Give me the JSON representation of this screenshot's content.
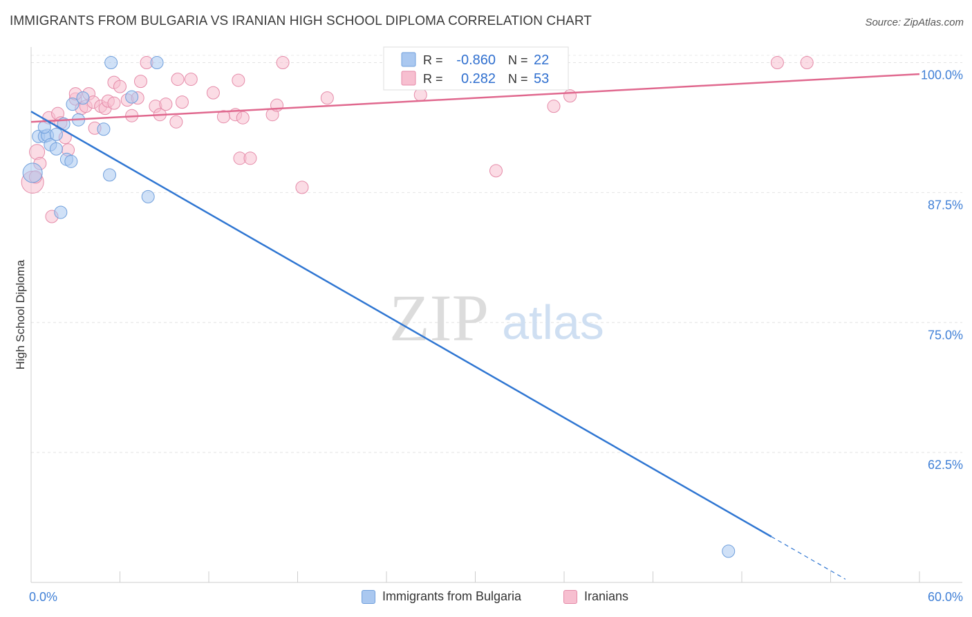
{
  "header": {
    "title": "IMMIGRANTS FROM BULGARIA VS IRANIAN HIGH SCHOOL DIPLOMA CORRELATION CHART",
    "source": "Source: ZipAtlas.com"
  },
  "watermark": {
    "zip": "ZIP",
    "atlas": "atlas"
  },
  "chart_data": {
    "type": "scatter",
    "title": "IMMIGRANTS FROM BULGARIA VS IRANIAN HIGH SCHOOL DIPLOMA CORRELATION CHART",
    "ylabel": "High School Diploma",
    "xlabel": "",
    "xlim": [
      0,
      60
    ],
    "ylim": [
      50,
      101.5
    ],
    "x_tick_labels": [
      "0.0%",
      "60.0%"
    ],
    "y_ticks": [
      62.5,
      75.0,
      87.5,
      100.0
    ],
    "y_tick_labels": [
      "62.5%",
      "75.0%",
      "87.5%",
      "100.0%"
    ],
    "grid": true,
    "legend_stats": [
      {
        "r_label": "R =",
        "r_value": "-0.860",
        "n_label": "N =",
        "n_value": "22",
        "color": "#aac8f0",
        "stroke": "#6f9fdc"
      },
      {
        "r_label": "R =",
        "r_value": "0.282",
        "n_label": "N =",
        "n_value": "53",
        "color": "#f7bfd0",
        "stroke": "#e58aa8"
      }
    ],
    "series": [
      {
        "name": "Immigrants from Bulgaria",
        "color": "#aac8f0",
        "stroke": "#6f9fdc",
        "line_color": "#2f76d2",
        "trend": {
          "x0": 0,
          "y0": 95.3,
          "x1": 50,
          "y1": 54.4,
          "dash_to_x": 55
        },
        "points": [
          [
            0.1,
            89.4,
            14
          ],
          [
            0.5,
            92.9,
            9
          ],
          [
            0.9,
            92.9,
            9
          ],
          [
            1.1,
            93.0,
            9
          ],
          [
            0.9,
            93.8,
            9
          ],
          [
            1.3,
            92.1,
            9
          ],
          [
            1.7,
            93.1,
            9
          ],
          [
            1.7,
            91.7,
            9
          ],
          [
            2.2,
            94.1,
            9
          ],
          [
            2.4,
            90.7,
            9
          ],
          [
            2.7,
            90.5,
            9
          ],
          [
            2.8,
            96.0,
            9
          ],
          [
            3.2,
            94.5,
            9
          ],
          [
            3.5,
            96.6,
            9
          ],
          [
            4.9,
            93.6,
            9
          ],
          [
            5.3,
            89.2,
            9
          ],
          [
            5.4,
            100.0,
            9
          ],
          [
            6.8,
            96.7,
            9
          ],
          [
            7.9,
            87.1,
            9
          ],
          [
            8.5,
            100.0,
            9
          ],
          [
            2.0,
            85.6,
            9
          ],
          [
            47.1,
            53.0,
            9
          ]
        ]
      },
      {
        "name": "Iranians",
        "color": "#f7bfd0",
        "stroke": "#e58aa8",
        "line_color": "#e0688e",
        "trend": {
          "x0": 0,
          "y0": 94.3,
          "x1": 60,
          "y1": 98.9
        },
        "points": [
          [
            0.1,
            88.5,
            16
          ],
          [
            0.4,
            91.4,
            11
          ],
          [
            1.2,
            94.7,
            9
          ],
          [
            1.8,
            95.1,
            9
          ],
          [
            2.0,
            94.2,
            9
          ],
          [
            2.3,
            92.8,
            9
          ],
          [
            2.5,
            91.6,
            9
          ],
          [
            1.4,
            85.2,
            9
          ],
          [
            3.0,
            96.5,
            9
          ],
          [
            3.0,
            97.0,
            9
          ],
          [
            3.4,
            95.6,
            9
          ],
          [
            3.7,
            95.8,
            9
          ],
          [
            3.9,
            97.0,
            9
          ],
          [
            4.2,
            96.2,
            9
          ],
          [
            4.3,
            93.7,
            9
          ],
          [
            4.7,
            95.8,
            9
          ],
          [
            5.0,
            95.6,
            9
          ],
          [
            5.2,
            96.3,
            9
          ],
          [
            5.6,
            96.1,
            9
          ],
          [
            5.6,
            98.1,
            9
          ],
          [
            6.0,
            97.7,
            9
          ],
          [
            6.5,
            96.4,
            9
          ],
          [
            6.8,
            94.9,
            9
          ],
          [
            7.2,
            96.6,
            9
          ],
          [
            7.4,
            98.2,
            9
          ],
          [
            7.8,
            100.0,
            9
          ],
          [
            8.4,
            95.8,
            9
          ],
          [
            8.7,
            95.0,
            9
          ],
          [
            9.1,
            96.0,
            9
          ],
          [
            9.8,
            94.3,
            9
          ],
          [
            9.9,
            98.4,
            9
          ],
          [
            10.2,
            96.2,
            9
          ],
          [
            10.8,
            98.4,
            9
          ],
          [
            12.3,
            97.1,
            9
          ],
          [
            13.0,
            94.8,
            9
          ],
          [
            13.8,
            95.0,
            9
          ],
          [
            14.0,
            98.3,
            9
          ],
          [
            14.3,
            94.7,
            9
          ],
          [
            14.1,
            90.8,
            9
          ],
          [
            14.8,
            90.8,
            9
          ],
          [
            16.3,
            95.0,
            9
          ],
          [
            16.6,
            95.9,
            9
          ],
          [
            17.0,
            100.0,
            9
          ],
          [
            18.3,
            88.0,
            9
          ],
          [
            20.0,
            96.6,
            9
          ],
          [
            26.3,
            96.9,
            9
          ],
          [
            31.4,
            89.6,
            9
          ],
          [
            35.3,
            95.8,
            9
          ],
          [
            36.4,
            96.8,
            9
          ],
          [
            50.4,
            100.0,
            9
          ],
          [
            52.4,
            100.0,
            9
          ],
          [
            0.3,
            89.0,
            9
          ],
          [
            0.6,
            90.3,
            9
          ]
        ]
      }
    ]
  }
}
